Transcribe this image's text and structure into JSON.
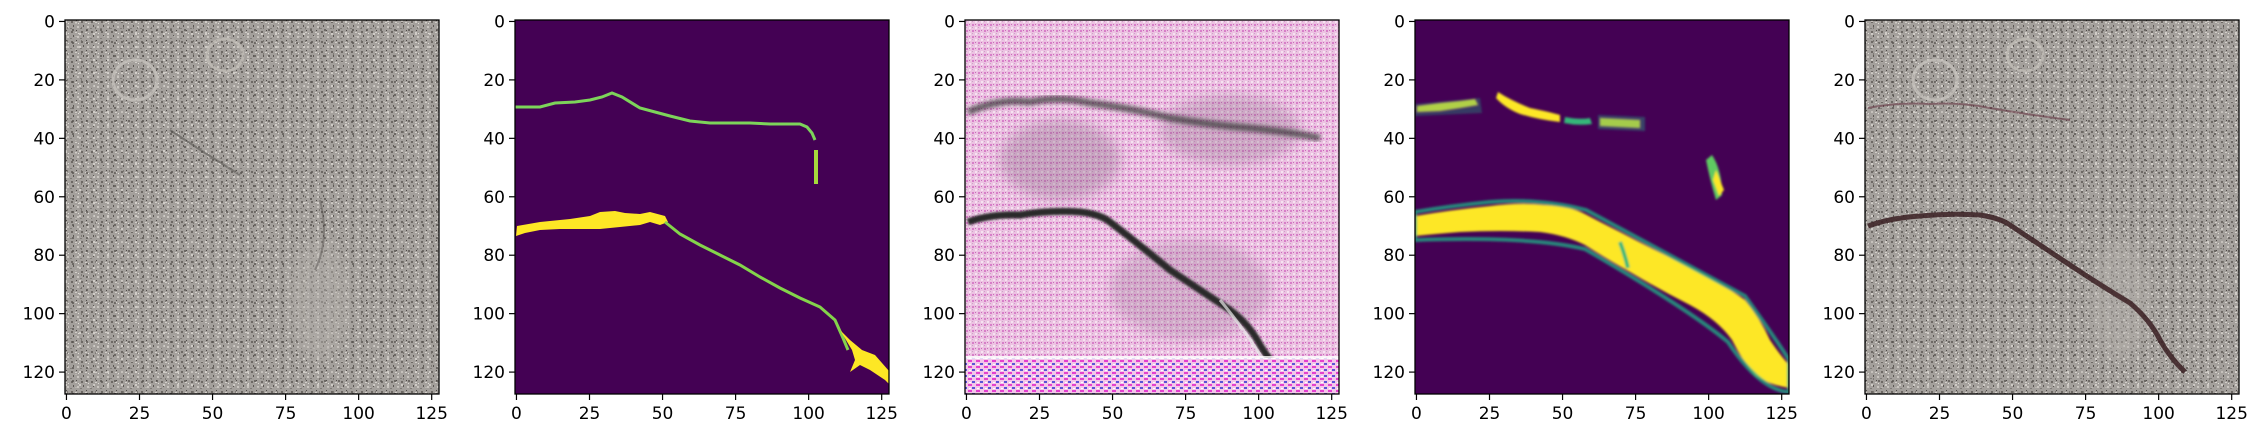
{
  "figure": {
    "panels": [
      {
        "kind": "photo",
        "theme": "gravel-original",
        "x_ticks": [
          "0",
          "25",
          "50",
          "75",
          "100",
          "125"
        ],
        "y_ticks": [
          "0",
          "20",
          "40",
          "60",
          "80",
          "100",
          "120"
        ]
      },
      {
        "kind": "mask",
        "theme": "crack-label",
        "x_ticks": [
          "0",
          "25",
          "50",
          "75",
          "100",
          "125"
        ],
        "y_ticks": [
          "0",
          "20",
          "40",
          "60",
          "80",
          "100",
          "120"
        ]
      },
      {
        "kind": "photo",
        "theme": "pink-noise-reconstruction",
        "x_ticks": [
          "0",
          "25",
          "50",
          "75",
          "100",
          "125"
        ],
        "y_ticks": [
          "0",
          "20",
          "40",
          "60",
          "80",
          "100",
          "120"
        ]
      },
      {
        "kind": "mask",
        "theme": "crack-prediction",
        "x_ticks": [
          "0",
          "25",
          "50",
          "75",
          "100",
          "125"
        ],
        "y_ticks": [
          "0",
          "20",
          "40",
          "60",
          "80",
          "100",
          "120"
        ]
      },
      {
        "kind": "photo",
        "theme": "gravel-overlay",
        "x_ticks": [
          "0",
          "25",
          "50",
          "75",
          "100",
          "125"
        ],
        "y_ticks": [
          "0",
          "20",
          "40",
          "60",
          "80",
          "100",
          "120"
        ]
      }
    ],
    "image_size": 128,
    "colors": {
      "mask_background": "#440154",
      "mask_foreground": "#fde725",
      "mask_edge": "#21a685",
      "gravel": "#9e9a96",
      "pink": "#e6a3da",
      "crack": "#2b2b2b"
    }
  }
}
